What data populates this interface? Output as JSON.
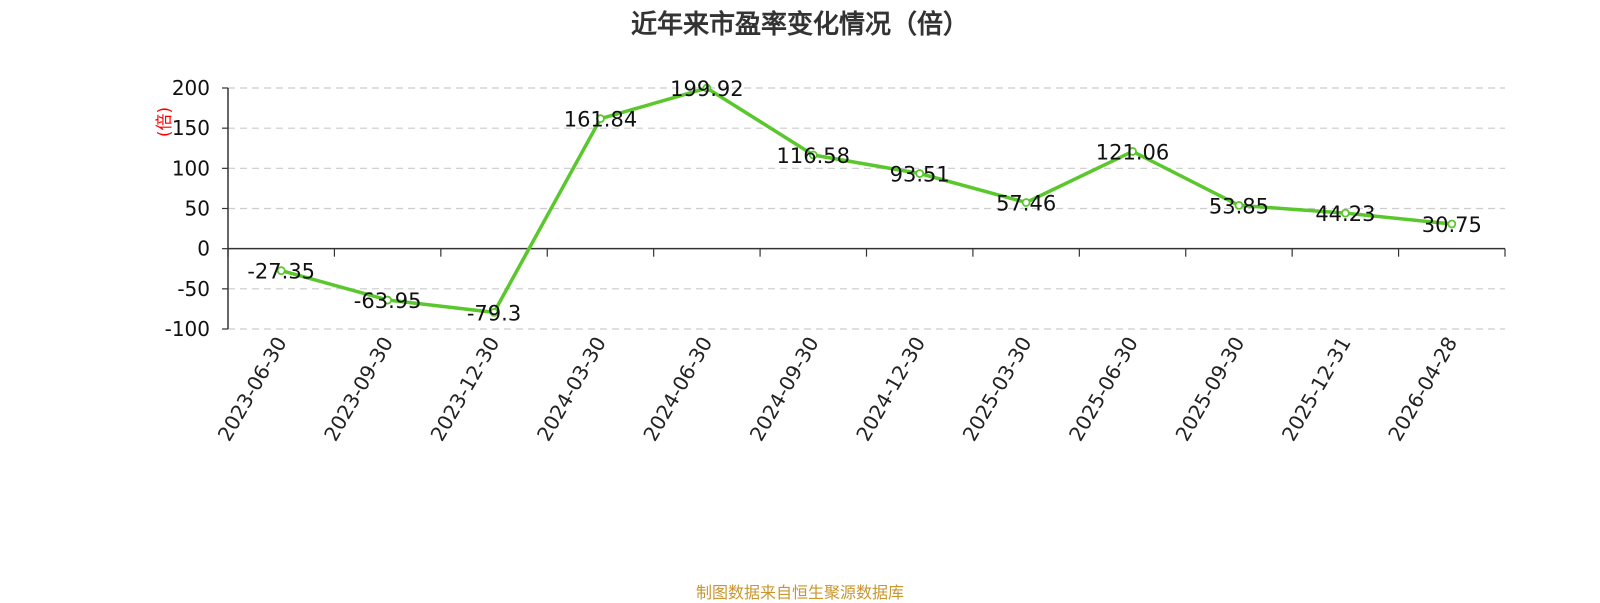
{
  "chart_data": {
    "type": "line",
    "title": "近年来市盈率变化情况（倍）",
    "ylabel": "(倍)",
    "categories": [
      "2023-06-30",
      "2023-09-30",
      "2023-12-30",
      "2024-03-30",
      "2024-06-30",
      "2024-09-30",
      "2024-12-30",
      "2025-03-30",
      "2025-06-30",
      "2025-09-30",
      "2025-12-31",
      "2026-04-28"
    ],
    "values": [
      -27.35,
      -63.95,
      -79.3,
      161.84,
      199.92,
      116.58,
      93.51,
      57.46,
      121.06,
      53.85,
      44.23,
      30.75
    ],
    "data_labels": [
      "-27.35",
      "-63.95",
      "-79.3",
      "161.84",
      "199.92",
      "116.58",
      "93.51",
      "57.46",
      "121.06",
      "53.85",
      "44.23",
      "30.75"
    ],
    "yticks": [
      200,
      150,
      100,
      50,
      0,
      -50,
      -100
    ],
    "ylim": [
      -100,
      200
    ],
    "grid": true,
    "line_color": "#5ac82d"
  },
  "footer": {
    "source": "制图数据来自恒生聚源数据库"
  }
}
